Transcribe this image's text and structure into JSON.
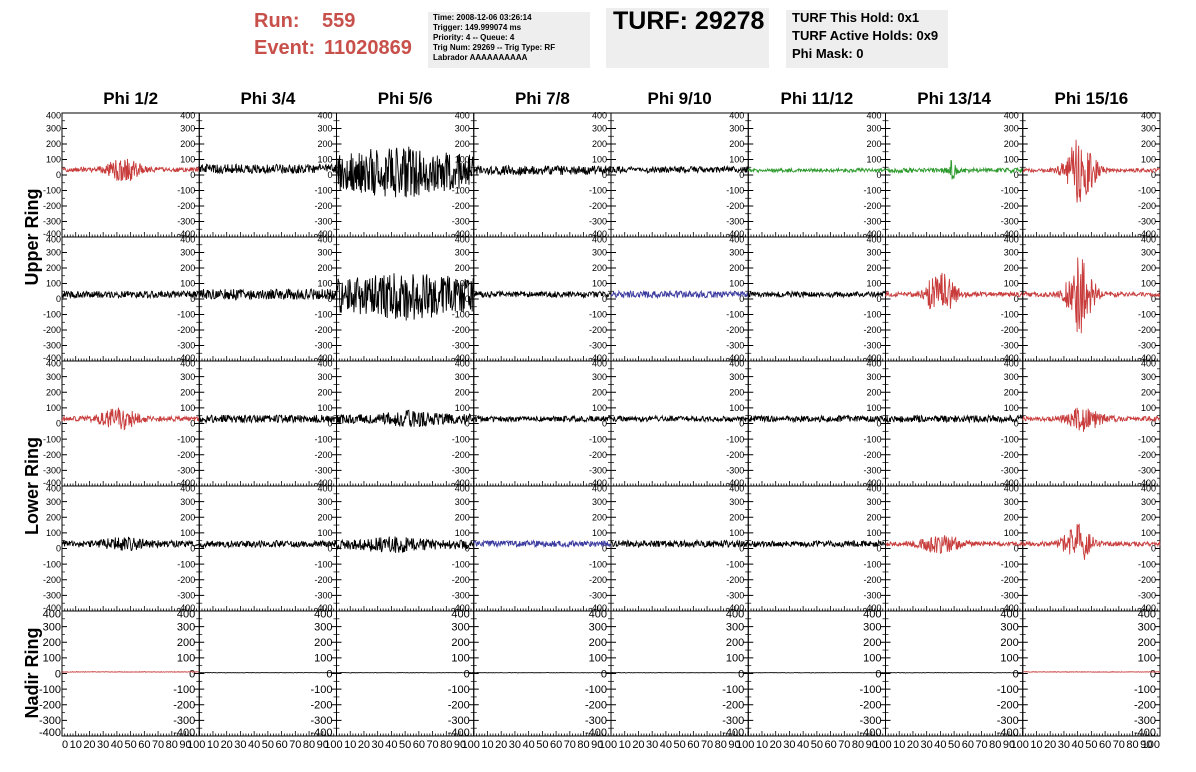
{
  "header": {
    "run_label": "Run:",
    "run_value": "559",
    "event_label": "Event:",
    "event_value": "11020869",
    "info_lines": [
      "Time: 2008-12-06 03:26:14",
      "Trigger: 149.999074 ms",
      "Priority: 4 -- Queue: 4",
      "Trig Num: 29269 -- Trig Type: RF",
      "Labrador AAAAAAAAAA"
    ],
    "turf_text": "TURF: 29278",
    "hold_lines": [
      "TURF This Hold: 0x1",
      "TURF Active Holds: 0x9",
      "Phi Mask: 0"
    ]
  },
  "colors": {
    "red": "#c83c3c",
    "black": "#000000",
    "green": "#2e9a2e",
    "blue": "#3b3ba0",
    "header_red": "#c8504b",
    "box_gray": "#eeeeee"
  },
  "chart_data": {
    "type": "line",
    "columns": [
      "Phi 1/2",
      "Phi 3/4",
      "Phi 5/6",
      "Phi 7/8",
      "Phi 9/10",
      "Phi 11/12",
      "Phi 13/14",
      "Phi 15/16"
    ],
    "ring_labels": [
      "Upper Ring",
      "Lower Ring",
      "Nadir Ring"
    ],
    "xlim": [
      0,
      100
    ],
    "x_tick_labels": [
      "0",
      "10",
      "20",
      "30",
      "40",
      "50",
      "60",
      "70",
      "80",
      "90",
      "10"
    ],
    "x_tick_labels_last": [
      "0",
      "10",
      "20",
      "30",
      "40",
      "50",
      "60",
      "70",
      "80",
      "90",
      "100"
    ],
    "ylim": [
      -400,
      400
    ],
    "y_ticks": [
      400,
      300,
      200,
      100,
      0,
      -100,
      -200,
      -300,
      -400
    ],
    "rows": [
      [
        {
          "color": "red",
          "base": 35,
          "noise": 15,
          "burst_amp": 70,
          "burst_center": 45,
          "burst_width": 12
        },
        {
          "color": "black",
          "base": 40,
          "noise": 30,
          "burst_amp": 0,
          "burst_center": 50,
          "burst_width": 10
        },
        {
          "color": "black",
          "base": 20,
          "noise": 110,
          "burst_amp": 60,
          "burst_center": 45,
          "burst_width": 30
        },
        {
          "color": "black",
          "base": 30,
          "noise": 30,
          "burst_amp": 0,
          "burst_center": 50,
          "burst_width": 10
        },
        {
          "color": "black",
          "base": 35,
          "noise": 20,
          "burst_amp": 0,
          "burst_center": 50,
          "burst_width": 10
        },
        {
          "color": "green",
          "base": 30,
          "noise": 12,
          "burst_amp": 0,
          "burst_center": 50,
          "burst_width": 10
        },
        {
          "color": "green",
          "base": 30,
          "noise": 15,
          "burst_amp": 60,
          "burst_center": 48,
          "burst_width": 3
        },
        {
          "color": "red",
          "base": 30,
          "noise": 12,
          "burst_amp": 220,
          "burst_center": 42,
          "burst_width": 10
        }
      ],
      [
        {
          "color": "black",
          "base": 30,
          "noise": 22,
          "burst_amp": 0,
          "burst_center": 50,
          "burst_width": 10
        },
        {
          "color": "black",
          "base": 30,
          "noise": 35,
          "burst_amp": 0,
          "burst_center": 50,
          "burst_width": 10
        },
        {
          "color": "black",
          "base": 20,
          "noise": 110,
          "burst_amp": 50,
          "burst_center": 55,
          "burst_width": 30
        },
        {
          "color": "black",
          "base": 30,
          "noise": 20,
          "burst_amp": 0,
          "burst_center": 50,
          "burst_width": 10
        },
        {
          "color": "blue",
          "base": 30,
          "noise": 22,
          "burst_amp": 0,
          "burst_center": 50,
          "burst_width": 10
        },
        {
          "color": "black",
          "base": 30,
          "noise": 18,
          "burst_amp": 0,
          "burst_center": 50,
          "burst_width": 10
        },
        {
          "color": "red",
          "base": 30,
          "noise": 15,
          "burst_amp": 150,
          "burst_center": 40,
          "burst_width": 10
        },
        {
          "color": "red",
          "base": 30,
          "noise": 15,
          "burst_amp": 250,
          "burst_center": 42,
          "burst_width": 9
        }
      ],
      [
        {
          "color": "red",
          "base": 30,
          "noise": 15,
          "burst_amp": 60,
          "burst_center": 42,
          "burst_width": 14
        },
        {
          "color": "black",
          "base": 30,
          "noise": 25,
          "burst_amp": 0,
          "burst_center": 50,
          "burst_width": 10
        },
        {
          "color": "black",
          "base": 30,
          "noise": 30,
          "burst_amp": 25,
          "burst_center": 55,
          "burst_width": 20
        },
        {
          "color": "black",
          "base": 30,
          "noise": 18,
          "burst_amp": 0,
          "burst_center": 50,
          "burst_width": 10
        },
        {
          "color": "black",
          "base": 30,
          "noise": 18,
          "burst_amp": 0,
          "burst_center": 50,
          "burst_width": 10
        },
        {
          "color": "black",
          "base": 30,
          "noise": 20,
          "burst_amp": 0,
          "burst_center": 50,
          "burst_width": 10
        },
        {
          "color": "black",
          "base": 30,
          "noise": 22,
          "burst_amp": 0,
          "burst_center": 50,
          "burst_width": 10
        },
        {
          "color": "red",
          "base": 30,
          "noise": 15,
          "burst_amp": 70,
          "burst_center": 45,
          "burst_width": 12
        }
      ],
      [
        {
          "color": "black",
          "base": 30,
          "noise": 22,
          "burst_amp": 25,
          "burst_center": 45,
          "burst_width": 15
        },
        {
          "color": "black",
          "base": 30,
          "noise": 22,
          "burst_amp": 0,
          "burst_center": 50,
          "burst_width": 10
        },
        {
          "color": "black",
          "base": 25,
          "noise": 30,
          "burst_amp": 25,
          "burst_center": 40,
          "burst_width": 20
        },
        {
          "color": "blue",
          "base": 30,
          "noise": 20,
          "burst_amp": 0,
          "burst_center": 50,
          "burst_width": 10
        },
        {
          "color": "black",
          "base": 30,
          "noise": 22,
          "burst_amp": 0,
          "burst_center": 50,
          "burst_width": 10
        },
        {
          "color": "black",
          "base": 30,
          "noise": 20,
          "burst_amp": 0,
          "burst_center": 50,
          "burst_width": 10
        },
        {
          "color": "red",
          "base": 30,
          "noise": 15,
          "burst_amp": 50,
          "burst_center": 40,
          "burst_width": 14
        },
        {
          "color": "red",
          "base": 30,
          "noise": 15,
          "burst_amp": 120,
          "burst_center": 40,
          "burst_width": 10
        }
      ],
      [
        {
          "color": "red",
          "base": 10,
          "noise": 2,
          "burst_amp": 0,
          "burst_center": 50,
          "burst_width": 10
        },
        {
          "color": "black",
          "base": 5,
          "noise": 1,
          "burst_amp": 0,
          "burst_center": 50,
          "burst_width": 10
        },
        {
          "color": "black",
          "base": 5,
          "noise": 1,
          "burst_amp": 0,
          "burst_center": 50,
          "burst_width": 10
        },
        {
          "color": "black",
          "base": 5,
          "noise": 1,
          "burst_amp": 0,
          "burst_center": 50,
          "burst_width": 10
        },
        {
          "color": "black",
          "base": 5,
          "noise": 1,
          "burst_amp": 0,
          "burst_center": 50,
          "burst_width": 10
        },
        {
          "color": "black",
          "base": 5,
          "noise": 1,
          "burst_amp": 0,
          "burst_center": 50,
          "burst_width": 10
        },
        {
          "color": "black",
          "base": 5,
          "noise": 1,
          "burst_amp": 0,
          "burst_center": 50,
          "burst_width": 10
        },
        {
          "color": "red",
          "base": 10,
          "noise": 2,
          "burst_amp": 0,
          "burst_center": 50,
          "burst_width": 10
        }
      ]
    ]
  }
}
